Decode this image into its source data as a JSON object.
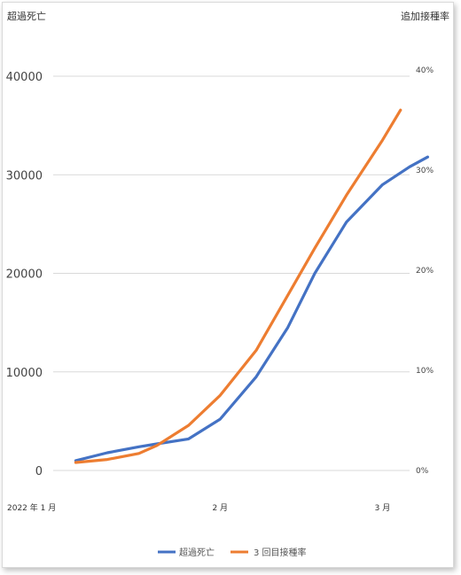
{
  "chart_data": {
    "type": "line",
    "left_axis_title": "超過死亡",
    "right_axis_title": "追加接種率",
    "y_left": {
      "ticks": [
        "0",
        "10000",
        "20000",
        "30000",
        "40000"
      ],
      "range": [
        0,
        40000
      ]
    },
    "y_right": {
      "ticks": [
        "0%",
        "10%",
        "20%",
        "30%",
        "40%"
      ],
      "range": [
        0,
        0.4
      ]
    },
    "x_ticks": [
      "2022 年 1 月",
      "2 月",
      "3 月"
    ],
    "series": [
      {
        "name": "超過死亡",
        "axis": "left",
        "color": "#4472C4",
        "x": [
          0,
          0.7,
          1.4,
          1.8,
          2.5,
          3.2,
          4.0,
          4.7,
          5.3,
          6.0,
          6.8,
          7.4,
          7.8
        ],
        "values": [
          1000,
          1800,
          2400,
          2700,
          3200,
          5200,
          9500,
          14500,
          20000,
          25200,
          29000,
          30800,
          31800
        ]
      },
      {
        "name": "3 回目接種率",
        "axis": "right",
        "color": "#ED7D31",
        "x": [
          0,
          0.7,
          1.4,
          1.8,
          2.5,
          3.2,
          4.0,
          4.7,
          5.3,
          6.0,
          6.8,
          7.2
        ],
        "values": [
          0.008,
          0.011,
          0.017,
          0.025,
          0.045,
          0.075,
          0.12,
          0.175,
          0.222,
          0.275,
          0.33,
          0.36
        ]
      }
    ],
    "x_tick_positions": [
      0,
      3.2,
      6.8
    ],
    "x_range": [
      -0.5,
      7.4
    ],
    "grid": true,
    "legend_position": "bottom"
  }
}
